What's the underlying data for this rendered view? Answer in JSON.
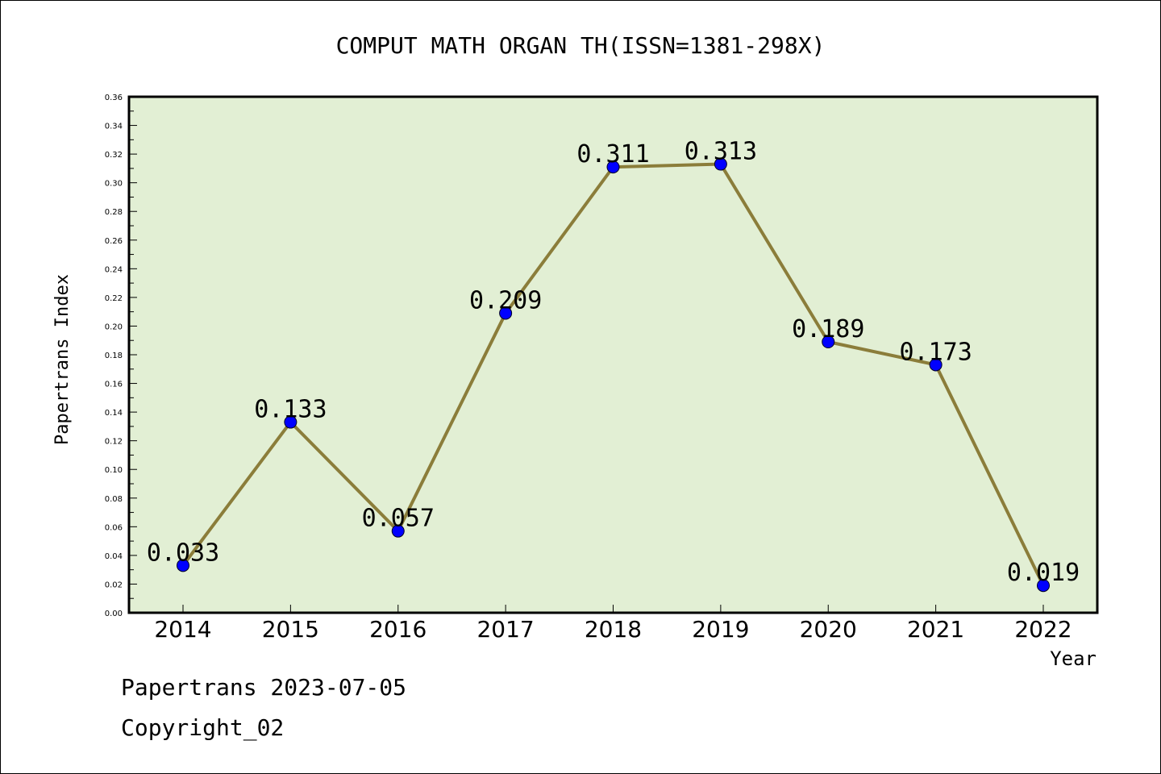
{
  "chart_data": {
    "type": "line",
    "title": "COMPUT MATH ORGAN TH(ISSN=1381-298X)",
    "xlabel": "Year",
    "ylabel": "Papertrans Index",
    "categories": [
      "2014",
      "2015",
      "2016",
      "2017",
      "2018",
      "2019",
      "2020",
      "2021",
      "2022"
    ],
    "values": [
      0.033,
      0.133,
      0.057,
      0.209,
      0.311,
      0.313,
      0.189,
      0.173,
      0.019
    ],
    "data_labels": [
      "0.033",
      "0.133",
      "0.057",
      "0.209",
      "0.311",
      "0.313",
      "0.189",
      "0.173",
      "0.019"
    ],
    "ylim": [
      0,
      0.36
    ],
    "yticks": [
      "0.00",
      "0.02",
      "0.04",
      "0.06",
      "0.08",
      "0.10",
      "0.12",
      "0.14",
      "0.16",
      "0.18",
      "0.20",
      "0.22",
      "0.24",
      "0.26",
      "0.28",
      "0.30",
      "0.32",
      "0.34",
      "0.36"
    ],
    "grid": false,
    "colors": {
      "plot_background": "#e2efd4",
      "line": "#8b7d3a",
      "marker": "#0000ff"
    }
  },
  "footer": {
    "line1": "Papertrans 2023-07-05",
    "line2": "Copyright_02"
  }
}
